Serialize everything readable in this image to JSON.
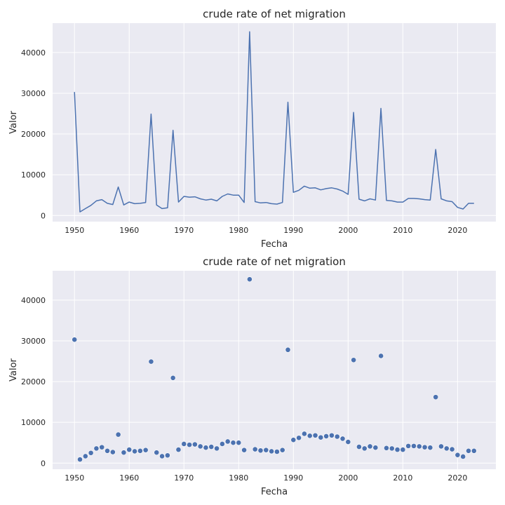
{
  "chart_data": [
    {
      "type": "line",
      "title": "crude rate of net migration",
      "xlabel": "Fecha",
      "ylabel": "Valor",
      "xlim": [
        1946,
        2027
      ],
      "ylim": [
        -1500,
        47200
      ],
      "xticks": [
        1950,
        1960,
        1970,
        1980,
        1990,
        2000,
        2010,
        2020
      ],
      "yticks": [
        0,
        10000,
        20000,
        30000,
        40000
      ],
      "grid": true,
      "color": "#4c72b0",
      "x": [
        1950,
        1951,
        1952,
        1953,
        1954,
        1955,
        1956,
        1957,
        1958,
        1959,
        1960,
        1961,
        1962,
        1963,
        1964,
        1965,
        1966,
        1967,
        1968,
        1969,
        1970,
        1971,
        1972,
        1973,
        1974,
        1975,
        1976,
        1977,
        1978,
        1979,
        1980,
        1981,
        1982,
        1983,
        1984,
        1985,
        1986,
        1987,
        1988,
        1989,
        1990,
        1991,
        1992,
        1993,
        1994,
        1995,
        1996,
        1997,
        1998,
        1999,
        2000,
        2001,
        2002,
        2003,
        2004,
        2005,
        2006,
        2007,
        2008,
        2009,
        2010,
        2011,
        2012,
        2013,
        2014,
        2015,
        2016,
        2017,
        2018,
        2019,
        2020,
        2021,
        2022,
        2023
      ],
      "y": [
        30300,
        900,
        1700,
        2500,
        3600,
        3900,
        3000,
        2700,
        7000,
        2600,
        3300,
        2900,
        3000,
        3200,
        24900,
        2600,
        1700,
        1900,
        20900,
        3300,
        4700,
        4500,
        4600,
        4100,
        3800,
        4000,
        3600,
        4700,
        5300,
        5000,
        5000,
        3200,
        45100,
        3400,
        3100,
        3200,
        2900,
        2800,
        3200,
        27800,
        5700,
        6200,
        7200,
        6700,
        6800,
        6300,
        6600,
        6800,
        6500,
        6000,
        5200,
        25300,
        4000,
        3600,
        4100,
        3800,
        26300,
        3700,
        3600,
        3300,
        3300,
        4200,
        4200,
        4100,
        3900,
        3800,
        16200,
        4100,
        3600,
        3400,
        2000,
        1600,
        3000,
        3000
      ]
    },
    {
      "type": "scatter",
      "title": "crude rate of net migration",
      "xlabel": "Fecha",
      "ylabel": "Valor",
      "xlim": [
        1946,
        2027
      ],
      "ylim": [
        -1500,
        47200
      ],
      "xticks": [
        1950,
        1960,
        1970,
        1980,
        1990,
        2000,
        2010,
        2020
      ],
      "yticks": [
        0,
        10000,
        20000,
        30000,
        40000
      ],
      "grid": true,
      "color": "#4c72b0",
      "x": [
        1950,
        1951,
        1952,
        1953,
        1954,
        1955,
        1956,
        1957,
        1958,
        1959,
        1960,
        1961,
        1962,
        1963,
        1964,
        1965,
        1966,
        1967,
        1968,
        1969,
        1970,
        1971,
        1972,
        1973,
        1974,
        1975,
        1976,
        1977,
        1978,
        1979,
        1980,
        1981,
        1982,
        1983,
        1984,
        1985,
        1986,
        1987,
        1988,
        1989,
        1990,
        1991,
        1992,
        1993,
        1994,
        1995,
        1996,
        1997,
        1998,
        1999,
        2000,
        2001,
        2002,
        2003,
        2004,
        2005,
        2006,
        2007,
        2008,
        2009,
        2010,
        2011,
        2012,
        2013,
        2014,
        2015,
        2016,
        2017,
        2018,
        2019,
        2020,
        2021,
        2022,
        2023
      ],
      "y": [
        30300,
        900,
        1700,
        2500,
        3600,
        3900,
        3000,
        2700,
        7000,
        2600,
        3300,
        2900,
        3000,
        3200,
        24900,
        2600,
        1700,
        1900,
        20900,
        3300,
        4700,
        4500,
        4600,
        4100,
        3800,
        4000,
        3600,
        4700,
        5300,
        5000,
        5000,
        3200,
        45100,
        3400,
        3100,
        3200,
        2900,
        2800,
        3200,
        27800,
        5700,
        6200,
        7200,
        6700,
        6800,
        6300,
        6600,
        6800,
        6500,
        6000,
        5200,
        25300,
        4000,
        3600,
        4100,
        3800,
        26300,
        3700,
        3600,
        3300,
        3300,
        4200,
        4200,
        4100,
        3900,
        3800,
        16200,
        4100,
        3600,
        3400,
        2000,
        1600,
        3000,
        3000
      ]
    }
  ]
}
